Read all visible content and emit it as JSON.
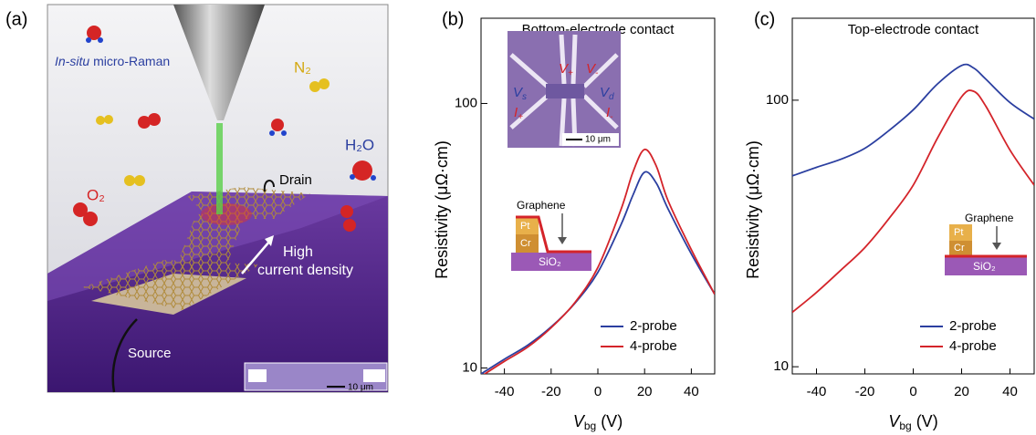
{
  "panel_labels": [
    "(a)",
    "(b)",
    "(c)"
  ],
  "illustration": {
    "raman": {
      "emphasis": "In-situ",
      "rest": "micro-Raman"
    },
    "n2": "N₂",
    "h2o": "H₂O",
    "o2": "O₂",
    "drain": "Drain",
    "current": [
      "High",
      "current density"
    ],
    "source": "Source",
    "scale_bar": "10 μm"
  },
  "chart_data": [
    {
      "type": "line",
      "title": "Bottom-electrode contact",
      "xlabel": {
        "symbol": "V",
        "subscript": "bg",
        "unit": "(V)"
      },
      "ylabel": "Resistivity (μΩ·cm)",
      "x": [
        -50,
        -40,
        -30,
        -20,
        -10,
        0,
        10,
        15,
        20,
        25,
        30,
        40,
        50
      ],
      "series": [
        {
          "name": "2-probe",
          "color": "#2b3fa0",
          "values": [
            9.5,
            10.8,
            12.2,
            14.3,
            17.5,
            23,
            35,
            45,
            55,
            50,
            40,
            27,
            19
          ]
        },
        {
          "name": "4-probe",
          "color": "#d4242a",
          "values": [
            9.3,
            10.6,
            12.0,
            14.2,
            17.6,
            24,
            40,
            55,
            67,
            58,
            43,
            28,
            19
          ]
        }
      ],
      "xlim": [
        -50,
        50
      ],
      "ylim": [
        9.5,
        210
      ],
      "xticks": [
        -40,
        -20,
        0,
        20,
        40
      ],
      "yticks": [
        10,
        100
      ],
      "log_y": true,
      "legend": "lower right",
      "inset": {
        "labels": [
          {
            "text": "V",
            "sub": "+"
          },
          {
            "text": "V",
            "sub": "-"
          },
          {
            "text": "V",
            "sub": "s"
          },
          {
            "text": "V",
            "sub": "d"
          },
          {
            "text": "I",
            "sub": "+"
          },
          {
            "text": "I",
            "sub": "-"
          }
        ],
        "scale_bar": "10 μm"
      },
      "schematic": {
        "graphene": "Graphene",
        "top": "Pt",
        "middle": "Cr",
        "substrate": "SiO₂"
      }
    },
    {
      "type": "line",
      "title": "Top-electrode contact",
      "xlabel": {
        "symbol": "V",
        "subscript": "bg",
        "unit": "(V)"
      },
      "ylabel": "Resistivity (μΩ·cm)",
      "x": [
        -50,
        -40,
        -30,
        -20,
        -10,
        0,
        10,
        20,
        25,
        30,
        40,
        50
      ],
      "series": [
        {
          "name": "2-probe",
          "color": "#2b3fa0",
          "values": [
            52,
            56,
            60,
            66,
            77,
            92,
            115,
            135,
            132,
            120,
            98,
            85
          ]
        },
        {
          "name": "4-probe",
          "color": "#d4242a",
          "values": [
            16,
            19,
            23,
            28,
            36,
            48,
            72,
            103,
            108,
            95,
            65,
            48
          ]
        }
      ],
      "xlim": [
        -50,
        50
      ],
      "ylim": [
        9.4,
        203
      ],
      "xticks": [
        -40,
        -20,
        0,
        20,
        40
      ],
      "yticks": [
        10,
        100
      ],
      "log_y": true,
      "legend": "lower right",
      "schematic": {
        "graphene": "Graphene",
        "top": "Pt",
        "middle": "Cr",
        "substrate": "SiO₂"
      }
    }
  ]
}
